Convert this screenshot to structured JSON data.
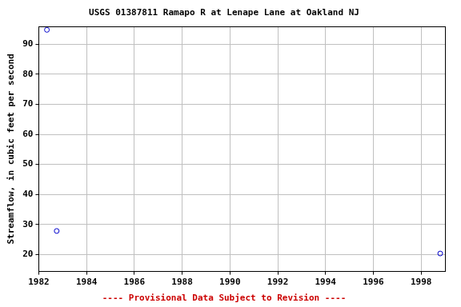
{
  "chart_data": {
    "type": "scatter",
    "title": "USGS 01387811 Ramapo R at Lenape Lane at Oakland NJ",
    "y_label": "Streamflow, in cubic feet per second",
    "annotations": [
      "---- Provisional Data Subject to Revision ----"
    ],
    "x": [
      1982.34,
      1982.75,
      1998.8
    ],
    "values": [
      94.8,
      27.8,
      20.3
    ],
    "color": "#0000cc",
    "marker": "open_circle",
    "xlim": [
      1982,
      1999
    ],
    "xticks": [
      1982,
      1984,
      1986,
      1988,
      1990,
      1992,
      1994,
      1996,
      1998
    ],
    "ylim": [
      14.3,
      95.9
    ],
    "yticks": [
      20,
      30,
      40,
      50,
      60,
      70,
      80,
      90
    ],
    "grid": true
  }
}
